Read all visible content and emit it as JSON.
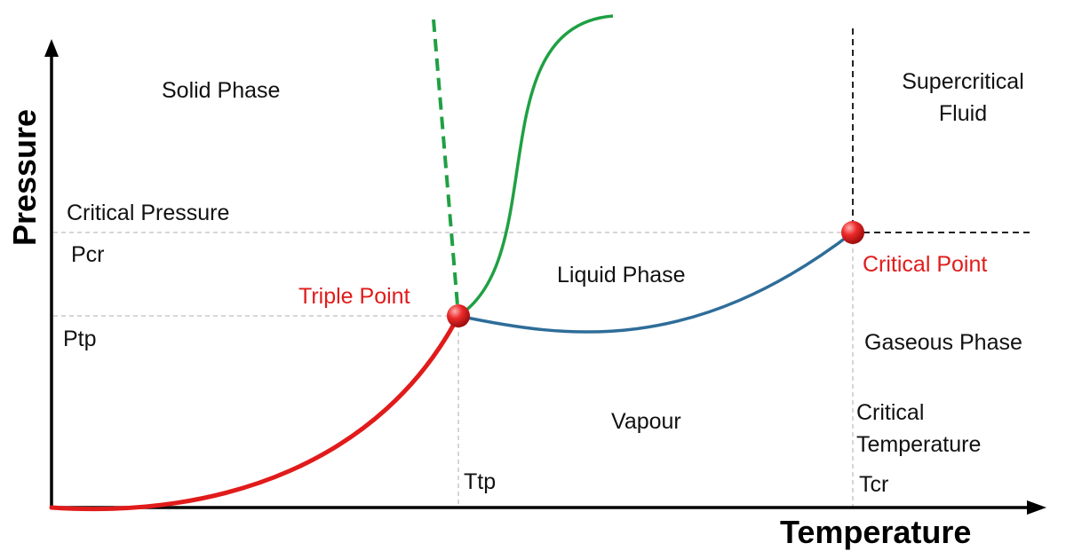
{
  "axes": {
    "x_label": "Temperature",
    "y_label": "Pressure"
  },
  "regions": {
    "solid": "Solid Phase",
    "liquid": "Liquid Phase",
    "vapour": "Vapour",
    "gaseous": "Gaseous Phase",
    "supercritical_line1": "Supercritical",
    "supercritical_line2": "Fluid"
  },
  "points": {
    "triple": "Triple Point",
    "critical": "Critical Point"
  },
  "reference_labels": {
    "critical_pressure": "Critical Pressure",
    "pcr": "Pcr",
    "ptp": "Ptp",
    "ttp": "Ttp",
    "critical_temp_line1": "Critical",
    "critical_temp_line2": "Temperature",
    "tcr": "Tcr"
  },
  "colors": {
    "sublimation_curve": "#e11b1b",
    "vaporization_curve": "#2e6d99",
    "melting_curve": "#1fa043",
    "point_marker": "#e11b1b",
    "point_label": "#e11b1b",
    "guide_line": "#c8c8c8",
    "axis": "#000000"
  }
}
